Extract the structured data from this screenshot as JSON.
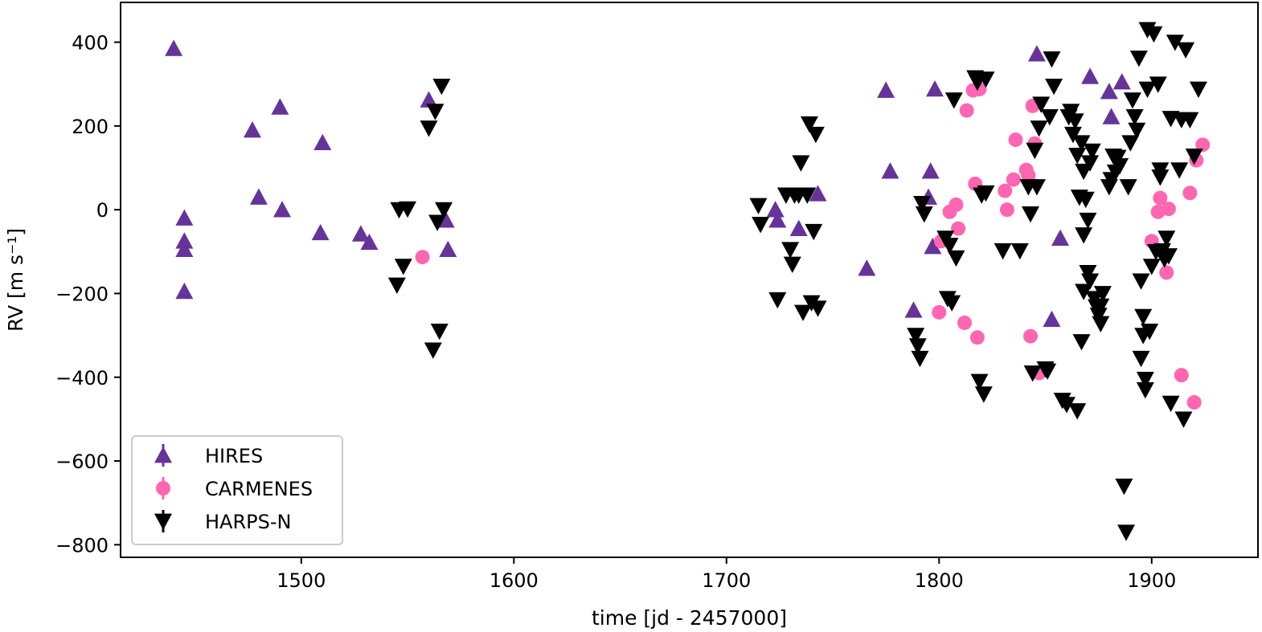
{
  "chart_data": {
    "type": "scatter",
    "title": "",
    "xlabel": "time [jd - 2457000]",
    "ylabel": "RV [m s⁻¹]",
    "xlim": [
      1415,
      1950
    ],
    "ylim": [
      -830,
      495
    ],
    "xticks": [
      1500,
      1600,
      1700,
      1800,
      1900
    ],
    "xtick_labels": [
      "1500",
      "1600",
      "1700",
      "1800",
      "1900"
    ],
    "yticks": [
      400,
      200,
      0,
      -200,
      -400,
      -600,
      -800
    ],
    "ytick_labels": [
      "400",
      "200",
      "0",
      "−200",
      "−400",
      "−600",
      "−800"
    ],
    "legend": {
      "position": "lower-left"
    },
    "series": [
      {
        "name": "HIRES",
        "marker": "triangle-up",
        "color": "#663399",
        "points": [
          [
            1440,
            385
          ],
          [
            1445,
            -20
          ],
          [
            1445,
            -75
          ],
          [
            1445,
            -95
          ],
          [
            1445,
            -195
          ],
          [
            1477,
            190
          ],
          [
            1480,
            30
          ],
          [
            1490,
            245
          ],
          [
            1491,
            0
          ],
          [
            1509,
            -55
          ],
          [
            1510,
            160
          ],
          [
            1528,
            -58
          ],
          [
            1532,
            -78
          ],
          [
            1560,
            262
          ],
          [
            1568,
            -25
          ],
          [
            1569,
            -95
          ],
          [
            1723,
            0
          ],
          [
            1724,
            -25
          ],
          [
            1734,
            -45
          ],
          [
            1743,
            38
          ],
          [
            1766,
            -140
          ],
          [
            1775,
            285
          ],
          [
            1777,
            92
          ],
          [
            1788,
            -240
          ],
          [
            1795,
            30
          ],
          [
            1796,
            92
          ],
          [
            1797,
            -88
          ],
          [
            1798,
            288
          ],
          [
            1846,
            372
          ],
          [
            1853,
            -262
          ],
          [
            1857,
            -68
          ],
          [
            1871,
            318
          ],
          [
            1880,
            282
          ],
          [
            1881,
            222
          ],
          [
            1886,
            305
          ]
        ]
      },
      {
        "name": "CARMENES",
        "marker": "circle",
        "color": "#ff66b2",
        "points": [
          [
            1557,
            -113
          ],
          [
            1800,
            -245
          ],
          [
            1801,
            -75
          ],
          [
            1805,
            -5
          ],
          [
            1808,
            12
          ],
          [
            1809,
            -45
          ],
          [
            1812,
            -270
          ],
          [
            1813,
            237
          ],
          [
            1816,
            285
          ],
          [
            1817,
            62
          ],
          [
            1818,
            -305
          ],
          [
            1819,
            288
          ],
          [
            1831,
            45
          ],
          [
            1832,
            0
          ],
          [
            1835,
            72
          ],
          [
            1836,
            167
          ],
          [
            1841,
            95
          ],
          [
            1842,
            82
          ],
          [
            1843,
            -302
          ],
          [
            1844,
            248
          ],
          [
            1845,
            158
          ],
          [
            1847,
            -390
          ],
          [
            1900,
            -75
          ],
          [
            1903,
            -5
          ],
          [
            1904,
            28
          ],
          [
            1907,
            -150
          ],
          [
            1908,
            2
          ],
          [
            1914,
            -395
          ],
          [
            1918,
            40
          ],
          [
            1920,
            -460
          ],
          [
            1921,
            118
          ],
          [
            1924,
            155
          ]
        ]
      },
      {
        "name": "HARPS-N",
        "marker": "triangle-down",
        "color": "#000000",
        "points": [
          [
            1545,
            -180
          ],
          [
            1546,
            0
          ],
          [
            1548,
            -135
          ],
          [
            1550,
            2
          ],
          [
            1560,
            195
          ],
          [
            1562,
            -335
          ],
          [
            1563,
            235
          ],
          [
            1564,
            -30
          ],
          [
            1565,
            -290
          ],
          [
            1566,
            295
          ],
          [
            1567,
            0
          ],
          [
            1715,
            10
          ],
          [
            1716,
            -35
          ],
          [
            1724,
            -215
          ],
          [
            1728,
            35
          ],
          [
            1730,
            -95
          ],
          [
            1731,
            -130
          ],
          [
            1732,
            35
          ],
          [
            1734,
            35
          ],
          [
            1735,
            112
          ],
          [
            1736,
            -245
          ],
          [
            1738,
            35
          ],
          [
            1739,
            205
          ],
          [
            1740,
            -222
          ],
          [
            1741,
            -52
          ],
          [
            1742,
            180
          ],
          [
            1743,
            -235
          ],
          [
            1789,
            -300
          ],
          [
            1790,
            -325
          ],
          [
            1791,
            -355
          ],
          [
            1792,
            15
          ],
          [
            1793,
            -10
          ],
          [
            1803,
            -68
          ],
          [
            1804,
            -212
          ],
          [
            1805,
            -85
          ],
          [
            1806,
            -222
          ],
          [
            1807,
            262
          ],
          [
            1808,
            -115
          ],
          [
            1817,
            315
          ],
          [
            1818,
            305
          ],
          [
            1819,
            -410
          ],
          [
            1820,
            35
          ],
          [
            1821,
            -440
          ],
          [
            1822,
            40
          ],
          [
            1822,
            312
          ],
          [
            1830,
            -98
          ],
          [
            1838,
            -98
          ],
          [
            1842,
            55
          ],
          [
            1843,
            -10
          ],
          [
            1844,
            -390
          ],
          [
            1845,
            142
          ],
          [
            1846,
            55
          ],
          [
            1847,
            195
          ],
          [
            1848,
            252
          ],
          [
            1850,
            -380
          ],
          [
            1851,
            -385
          ],
          [
            1852,
            222
          ],
          [
            1853,
            360
          ],
          [
            1854,
            295
          ],
          [
            1858,
            -455
          ],
          [
            1860,
            -465
          ],
          [
            1861,
            222
          ],
          [
            1862,
            235
          ],
          [
            1863,
            180
          ],
          [
            1864,
            212
          ],
          [
            1865,
            -480
          ],
          [
            1865,
            130
          ],
          [
            1866,
            30
          ],
          [
            1867,
            -315
          ],
          [
            1867,
            160
          ],
          [
            1868,
            -195
          ],
          [
            1868,
            -60
          ],
          [
            1868,
            92
          ],
          [
            1869,
            25
          ],
          [
            1870,
            -150
          ],
          [
            1870,
            -25
          ],
          [
            1871,
            -170
          ],
          [
            1871,
            112
          ],
          [
            1872,
            140
          ],
          [
            1873,
            -212
          ],
          [
            1874,
            -232
          ],
          [
            1875,
            -252
          ],
          [
            1876,
            -230
          ],
          [
            1876,
            -272
          ],
          [
            1877,
            -200
          ],
          [
            1880,
            55
          ],
          [
            1881,
            72
          ],
          [
            1882,
            128
          ],
          [
            1883,
            90
          ],
          [
            1884,
            125
          ],
          [
            1885,
            105
          ],
          [
            1887,
            -660
          ],
          [
            1888,
            -770
          ],
          [
            1889,
            55
          ],
          [
            1890,
            160
          ],
          [
            1891,
            262
          ],
          [
            1892,
            222
          ],
          [
            1893,
            190
          ],
          [
            1894,
            362
          ],
          [
            1895,
            -170
          ],
          [
            1895,
            -355
          ],
          [
            1896,
            -255
          ],
          [
            1896,
            -300
          ],
          [
            1897,
            -405
          ],
          [
            1897,
            -430
          ],
          [
            1898,
            430
          ],
          [
            1898,
            288
          ],
          [
            1899,
            -290
          ],
          [
            1900,
            -135
          ],
          [
            1901,
            420
          ],
          [
            1902,
            -100
          ],
          [
            1903,
            300
          ],
          [
            1904,
            78
          ],
          [
            1904,
            95
          ],
          [
            1905,
            -98
          ],
          [
            1906,
            -118
          ],
          [
            1907,
            -68
          ],
          [
            1908,
            -110
          ],
          [
            1909,
            -462
          ],
          [
            1909,
            218
          ],
          [
            1911,
            400
          ],
          [
            1913,
            95
          ],
          [
            1914,
            215
          ],
          [
            1915,
            -500
          ],
          [
            1916,
            382
          ],
          [
            1918,
            215
          ],
          [
            1920,
            128
          ],
          [
            1922,
            288
          ]
        ]
      }
    ]
  }
}
